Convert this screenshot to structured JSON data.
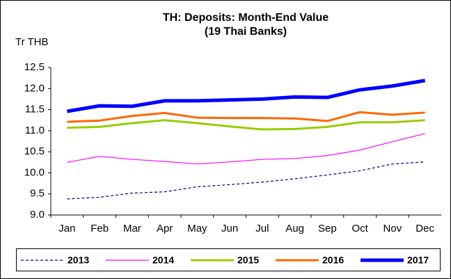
{
  "chart_data": {
    "type": "line",
    "title": "TH: Deposits: Month-End Value",
    "subtitle": "(19 Thai Banks)",
    "y_label": "Tr THB",
    "categories": [
      "Jan",
      "Feb",
      "Mar",
      "Apr",
      "May",
      "Jun",
      "Jul",
      "Aug",
      "Sep",
      "Oct",
      "Nov",
      "Dec"
    ],
    "series": [
      {
        "name": "2013",
        "color": "#000080",
        "line_width": 1.2,
        "dashed": true,
        "values": [
          9.38,
          9.42,
          9.52,
          9.55,
          9.67,
          9.72,
          9.78,
          9.86,
          9.95,
          10.05,
          10.21,
          10.26
        ]
      },
      {
        "name": "2014",
        "color": "#ff00ff",
        "line_width": 1.2,
        "dashed": false,
        "values": [
          10.25,
          10.39,
          10.32,
          10.27,
          10.21,
          10.26,
          10.32,
          10.34,
          10.41,
          10.54,
          10.74,
          10.93
        ]
      },
      {
        "name": "2015",
        "color": "#99cc00",
        "line_width": 3,
        "dashed": false,
        "values": [
          11.07,
          11.09,
          11.18,
          11.25,
          11.18,
          11.1,
          11.03,
          11.04,
          11.09,
          11.2,
          11.2,
          11.25
        ]
      },
      {
        "name": "2016",
        "color": "#ff6600",
        "line_width": 3,
        "dashed": false,
        "values": [
          11.21,
          11.24,
          11.35,
          11.42,
          11.31,
          11.3,
          11.3,
          11.29,
          11.23,
          11.44,
          11.38,
          11.43
        ]
      },
      {
        "name": "2017",
        "color": "#0000ff",
        "line_width": 5,
        "dashed": false,
        "values": [
          11.46,
          11.59,
          11.58,
          11.71,
          11.71,
          11.73,
          11.75,
          11.8,
          11.79,
          11.97,
          12.06,
          12.19
        ]
      }
    ],
    "ylim": [
      9,
      12.5
    ],
    "yticks": [
      {
        "value": 9,
        "label": "9.0"
      },
      9.5,
      {
        "value": 10,
        "label": "10.0"
      },
      10.5,
      {
        "value": 11,
        "label": "11.0"
      },
      11.5,
      {
        "value": 12,
        "label": "12.0"
      },
      12.5
    ],
    "grid": false,
    "legend": "bottom"
  }
}
